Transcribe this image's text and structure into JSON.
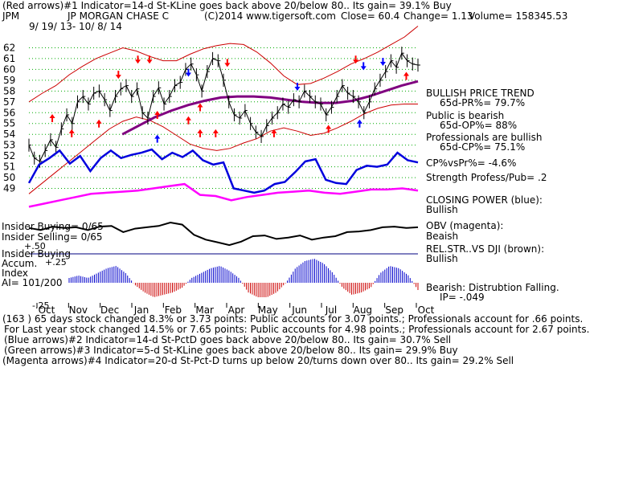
{
  "header": {
    "line1_left": "(Red arrows)#1 Indicator=14-d St-KLine goes back above 20/below 80.. Its gain= 39.1% Buy",
    "ticker": "JPM",
    "company": "JP MORGAN CHASE C",
    "copyright": "(C)2014 www.tigersoft.com",
    "close": "Close=  60.4",
    "change": "Change= 1.13",
    "volume": "Volume= 158345.53",
    "date_range": "9/ 19/ 13-  10/ 8/ 14"
  },
  "right_panel": {
    "trend_title": "BULLISH PRICE TREND",
    "pr": "65d-PR%= 79.7%",
    "public": "Public is bearish",
    "op": "65d-OP%= 88%",
    "professionals": "Professionals are bullish",
    "cp": "65d-CP%= 75.1%",
    "cpvspr": "CP%vsPr%= -4.6%",
    "strength": "Strength Profess/Pub= .2",
    "closing_power": "CLOSING POWER (blue):",
    "closing_power_value": "Bullish",
    "obv": "OBV (magenta):",
    "obv_value": "Beaish",
    "relstr": "REL.STR..VS DJI (brown):",
    "relstr_value": "Bullish",
    "accum": "Bearish: Distrubtion Falling.",
    "ip": "IP= -.049"
  },
  "left_labels": {
    "insider_buying_1": "Insider Buying= 0/65",
    "insider_selling": "Insider Selling= 0/65",
    "insider_buying_2": "Insider Buying",
    "accum": "Accum.",
    "index": "Index",
    "ai": "AI= 101/200",
    "acc_tick_50": "+.50",
    "acc_tick_25": "+.25",
    "acc_tick_neg25": "-.25"
  },
  "footer": {
    "line1": "(163 ) 65 days stock changed  8.3% or  3.73 points:  Public accounts for  3.07 points.;  Professionals account for  .66 points.",
    "line2": "For Last year stock changed  14.5% or  7.65 points:  Public accounts for  4.98 points.;  Professionals account for  2.67 points.",
    "line3": "(Blue arrows)#2 Indicator=14-d St-PctD goes back above 20/below 80.. Its gain= 30.7% Sell",
    "line4": "(Green arrows)#3 Indicator=5-d St-KLine goes back above 20/below 80.. Its gain= 29.9% Buy",
    "line5": "(Magenta arrows)#4 Indicator=20-d St-Pct-D turns up below 20/turns down over 80.. Its gain= 29.2% Sell"
  },
  "colors": {
    "price": "#000000",
    "band": "#cc0000",
    "ma": "#800080",
    "closing_power": "#0000dd",
    "obv": "#ff00ff",
    "relstr": "#000000",
    "accum_pos": "#0000cc",
    "accum_neg": "#cc0000",
    "grid": "#00aa00",
    "up_arrow": "#ff0000",
    "down_arrow": "#ff0000",
    "blue_arrow": "#0000ff"
  },
  "chart_data": {
    "type": "line",
    "title": "JP MORGAN CHASE C",
    "xlabel": "",
    "ylabel": "",
    "ylim": [
      48,
      63
    ],
    "yticks": [
      49,
      50,
      51,
      52,
      53,
      54,
      55,
      56,
      57,
      58,
      59,
      60,
      61,
      62
    ],
    "x_month_labels": [
      "Oct",
      "Nov",
      "Dec",
      "Jan",
      "Feb",
      "Mar",
      "Apr",
      "May",
      "Jun",
      "Jul",
      "Aug",
      "Sep",
      "Oct"
    ],
    "grid": true,
    "price_close": [
      53.0,
      51.8,
      51.5,
      52.5,
      53.5,
      52.8,
      54.5,
      55.8,
      55.0,
      57.0,
      57.5,
      56.8,
      57.8,
      58.0,
      57.2,
      56.2,
      57.5,
      58.2,
      58.5,
      57.5,
      58.2,
      56.0,
      55.5,
      57.5,
      58.3,
      56.8,
      57.5,
      58.5,
      58.8,
      60.0,
      60.5,
      59.5,
      58.0,
      59.8,
      61.0,
      60.8,
      59.0,
      57.0,
      55.8,
      55.5,
      56.2,
      55.0,
      54.2,
      53.8,
      54.8,
      55.5,
      56.0,
      56.8,
      56.5,
      57.2,
      57.0,
      58.0,
      57.5,
      57.0,
      56.8,
      55.8,
      56.5,
      57.5,
      58.5,
      57.8,
      57.5,
      57.0,
      56.0,
      57.0,
      58.2,
      59.0,
      59.8,
      60.8,
      60.2,
      61.5,
      60.8,
      60.5,
      60.4
    ],
    "upper_band": [
      57.0,
      57.8,
      58.5,
      59.5,
      60.3,
      61.0,
      61.5,
      62.0,
      61.7,
      61.2,
      60.8,
      60.8,
      61.4,
      61.9,
      62.2,
      62.4,
      62.3,
      61.6,
      60.6,
      59.4,
      58.6,
      58.7,
      59.2,
      59.8,
      60.5,
      61.0,
      61.6,
      62.3,
      63.0,
      64.0
    ],
    "lower_band": [
      48.5,
      49.5,
      50.5,
      51.5,
      52.5,
      53.5,
      54.5,
      55.2,
      55.6,
      55.3,
      54.7,
      53.9,
      53.1,
      52.7,
      52.5,
      52.7,
      53.2,
      53.6,
      54.3,
      54.6,
      54.3,
      53.9,
      54.1,
      54.6,
      55.2,
      55.9,
      56.4,
      56.7,
      56.8,
      56.8
    ],
    "ma_65d": [
      54.0,
      54.8,
      55.6,
      56.2,
      56.7,
      57.1,
      57.4,
      57.5,
      57.5,
      57.4,
      57.2,
      57.0,
      56.9,
      56.9,
      57.1,
      57.5,
      58.0,
      58.5,
      58.9
    ],
    "closing_power": [
      49.5,
      51.2,
      51.8,
      52.5,
      51.3,
      52.0,
      50.6,
      51.8,
      52.5,
      51.8,
      52.1,
      52.3,
      52.6,
      51.7,
      52.3,
      51.9,
      52.5,
      51.6,
      51.2,
      51.4,
      49.0,
      48.8,
      48.6,
      48.8,
      49.4,
      49.6,
      50.5,
      51.5,
      51.7,
      49.8,
      49.5,
      49.4,
      50.7,
      51.1,
      51.0,
      51.2,
      52.3,
      51.6,
      51.4
    ],
    "obv": [
      47.3,
      47.6,
      47.9,
      48.2,
      48.5,
      48.6,
      48.7,
      48.8,
      49.0,
      49.2,
      49.4,
      48.4,
      48.3,
      47.9,
      48.2,
      48.4,
      48.6,
      48.7,
      48.8,
      48.6,
      48.5,
      48.7,
      48.9,
      48.9,
      49.0,
      48.8
    ],
    "relstr": [
      0.72,
      0.69,
      0.74,
      0.72,
      0.73,
      0.69,
      0.74,
      0.75,
      0.66,
      0.71,
      0.73,
      0.75,
      0.8,
      0.77,
      0.62,
      0.55,
      0.51,
      0.47,
      0.52,
      0.6,
      0.61,
      0.56,
      0.58,
      0.61,
      0.55,
      0.58,
      0.6,
      0.66,
      0.67,
      0.69,
      0.73,
      0.74,
      0.72,
      0.73
    ],
    "accum_index": [
      0.1,
      0.15,
      0.1,
      0.2,
      0.3,
      0.35,
      0.2,
      -0.05,
      -0.2,
      -0.3,
      -0.25,
      -0.2,
      -0.1,
      0.1,
      0.2,
      0.3,
      0.35,
      0.25,
      0.1,
      -0.2,
      -0.3,
      -0.3,
      -0.2,
      0.0,
      0.3,
      0.45,
      0.5,
      0.4,
      0.2,
      -0.1,
      -0.25,
      -0.2,
      -0.1,
      0.2,
      0.35,
      0.3,
      0.15,
      -0.15
    ]
  }
}
